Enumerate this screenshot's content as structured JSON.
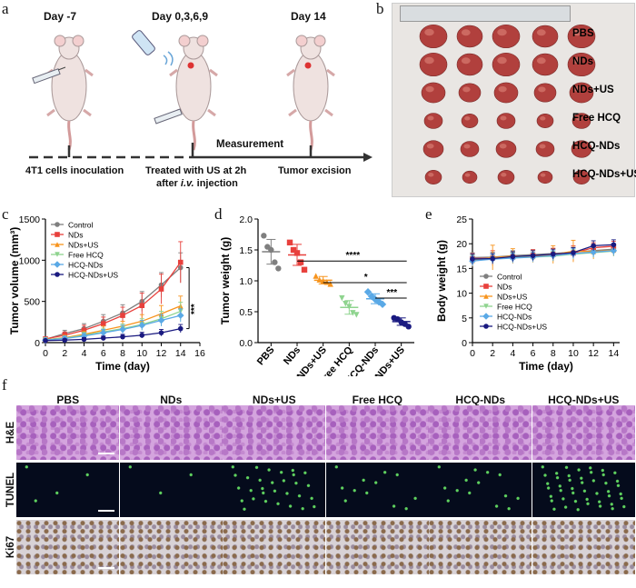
{
  "panel_letters": {
    "a": "a",
    "b": "b",
    "c": "c",
    "d": "d",
    "e": "e",
    "f": "f"
  },
  "panel_a": {
    "day_labels": [
      "Day -7",
      "Day 0,3,6,9",
      "Day 14"
    ],
    "measurement": "Measurement",
    "step1": "4T1 cells inoculation",
    "step2_line1": "Treated with US at 2h",
    "step2_line2_pre": "after ",
    "step2_line2_italic": "i.v.",
    "step2_line2_post": " injection",
    "step3": "Tumor excision"
  },
  "panel_b": {
    "row_labels": [
      "PBS",
      "NDs",
      "NDs+US",
      "Free HCQ",
      "HCQ-NDs",
      "HCQ-NDs+US"
    ]
  },
  "panel_f": {
    "column_labels": [
      "PBS",
      "NDs",
      "NDs+US",
      "Free HCQ",
      "HCQ-NDs",
      "HCQ-NDs+US"
    ],
    "row_labels": [
      "H&E",
      "TUNEL",
      "Ki67"
    ]
  },
  "chart_data": [
    {
      "id": "c",
      "type": "line",
      "ylabel": "Tumor volume (mm³)",
      "xlabel": "Time (day)",
      "x": [
        0,
        2,
        4,
        6,
        8,
        10,
        12,
        14
      ],
      "xticks": [
        "0",
        "2",
        "4",
        "6",
        "8",
        "10",
        "12",
        "14",
        "16"
      ],
      "yticks": [
        "0",
        "500",
        "1000",
        "1500"
      ],
      "xlim": [
        0,
        16
      ],
      "ylim": [
        0,
        1500
      ],
      "significance": "***",
      "series": [
        {
          "name": "Control",
          "color": "#7f7f7f",
          "marker": "circle",
          "values": [
            40,
            110,
            170,
            260,
            360,
            500,
            700,
            910
          ],
          "errors": [
            20,
            40,
            60,
            80,
            100,
            120,
            150,
            180
          ]
        },
        {
          "name": "NDs",
          "color": "#e8403c",
          "marker": "square",
          "values": [
            45,
            90,
            150,
            230,
            330,
            450,
            650,
            975
          ],
          "errors": [
            20,
            40,
            60,
            80,
            100,
            150,
            180,
            250
          ]
        },
        {
          "name": "NDs+US",
          "color": "#f7941d",
          "marker": "triangle",
          "values": [
            35,
            60,
            100,
            150,
            200,
            260,
            350,
            445
          ],
          "errors": [
            15,
            30,
            40,
            50,
            60,
            80,
            100,
            120
          ]
        },
        {
          "name": "Free HCQ",
          "color": "#8fd48f",
          "marker": "triangle-down",
          "values": [
            35,
            55,
            90,
            130,
            170,
            220,
            290,
            380
          ],
          "errors": [
            15,
            25,
            35,
            45,
            55,
            70,
            90,
            110
          ]
        },
        {
          "name": "HCQ-NDs",
          "color": "#5aa9e6",
          "marker": "diamond",
          "values": [
            30,
            50,
            80,
            120,
            160,
            210,
            270,
            330
          ],
          "errors": [
            15,
            25,
            30,
            40,
            50,
            60,
            70,
            80
          ]
        },
        {
          "name": "HCQ-NDs+US",
          "color": "#1a1a80",
          "marker": "circle",
          "values": [
            25,
            30,
            40,
            55,
            70,
            90,
            120,
            170
          ],
          "errors": [
            10,
            15,
            20,
            25,
            30,
            35,
            40,
            50
          ]
        }
      ]
    },
    {
      "id": "d",
      "type": "scatter",
      "ylabel": "Tumor weight (g)",
      "categories": [
        "PBS",
        "NDs",
        "NDs+US",
        "Free HCQ",
        "HCQ-NDs",
        "HCQ-NDs+US"
      ],
      "yticks": [
        "0.0",
        "0.5",
        "1.0",
        "1.5",
        "2.0"
      ],
      "ylim": [
        0,
        2.0
      ],
      "groups": [
        {
          "name": "PBS",
          "color": "#7f7f7f",
          "marker": "circle",
          "points": [
            1.73,
            1.55,
            1.5,
            1.3,
            1.2
          ],
          "mean": 1.47,
          "sd": 0.2
        },
        {
          "name": "NDs",
          "color": "#e8403c",
          "marker": "square",
          "points": [
            1.62,
            1.5,
            1.45,
            1.3,
            1.18
          ],
          "mean": 1.42,
          "sd": 0.17
        },
        {
          "name": "NDs+US",
          "color": "#f7941d",
          "marker": "triangle",
          "points": [
            1.08,
            1.02,
            1.0,
            0.98,
            0.95
          ],
          "mean": 1.01,
          "sd": 0.06
        },
        {
          "name": "Free HCQ",
          "color": "#8fd48f",
          "marker": "triangle-down",
          "points": [
            0.72,
            0.63,
            0.58,
            0.48,
            0.45
          ],
          "mean": 0.57,
          "sd": 0.11
        },
        {
          "name": "HCQ-NDs",
          "color": "#5aa9e6",
          "marker": "diamond",
          "points": [
            0.82,
            0.75,
            0.7,
            0.66,
            0.62
          ],
          "mean": 0.71,
          "sd": 0.08
        },
        {
          "name": "HCQ-NDs+US",
          "color": "#1a1a80",
          "marker": "circle",
          "points": [
            0.4,
            0.38,
            0.33,
            0.3,
            0.26
          ],
          "mean": 0.34,
          "sd": 0.06
        }
      ],
      "significance": [
        {
          "label": "****",
          "from": "NDs",
          "to": "HCQ-NDs+US",
          "y": 1.32
        },
        {
          "label": "*",
          "from": "NDs+US",
          "to": "HCQ-NDs+US",
          "y": 0.97
        },
        {
          "label": "***",
          "from": "HCQ-NDs",
          "to": "HCQ-NDs+US",
          "y": 0.72
        }
      ]
    },
    {
      "id": "e",
      "type": "line",
      "ylabel": "Body weight (g)",
      "xlabel": "Time (day)",
      "x": [
        0,
        2,
        4,
        6,
        8,
        10,
        12,
        14
      ],
      "xticks": [
        "0",
        "2",
        "4",
        "6",
        "8",
        "10",
        "12",
        "14"
      ],
      "yticks": [
        "0",
        "5",
        "10",
        "15",
        "20",
        "25"
      ],
      "xlim": [
        0,
        14.6
      ],
      "ylim": [
        0,
        25
      ],
      "series": [
        {
          "name": "Control",
          "color": "#7f7f7f",
          "marker": "circle",
          "values": [
            17.2,
            17.3,
            17.6,
            17.8,
            18.0,
            18.3,
            18.6,
            18.9
          ],
          "errors": [
            1,
            1,
            1,
            1,
            1,
            1,
            1,
            1
          ]
        },
        {
          "name": "NDs",
          "color": "#e8403c",
          "marker": "square",
          "values": [
            17.0,
            17.1,
            17.3,
            17.6,
            17.8,
            18.1,
            19.2,
            19.5
          ],
          "errors": [
            1,
            1.5,
            1,
            1.2,
            1.3,
            1.5,
            1,
            1
          ]
        },
        {
          "name": "NDs+US",
          "color": "#f7941d",
          "marker": "triangle",
          "values": [
            16.6,
            17.2,
            17.5,
            17.4,
            17.8,
            18.5,
            18.4,
            18.7
          ],
          "errors": [
            1.2,
            2.5,
            1.5,
            1.2,
            1.8,
            2.2,
            1.5,
            1.2
          ]
        },
        {
          "name": "Free HCQ",
          "color": "#8fd48f",
          "marker": "triangle-down",
          "values": [
            16.8,
            17.0,
            17.2,
            17.3,
            17.5,
            17.9,
            18.2,
            18.5
          ],
          "errors": [
            1,
            1,
            1,
            1,
            1,
            1,
            1,
            1
          ]
        },
        {
          "name": "HCQ-NDs",
          "color": "#5aa9e6",
          "marker": "diamond",
          "values": [
            16.5,
            16.9,
            17.1,
            17.3,
            17.6,
            18.0,
            18.3,
            18.6
          ],
          "errors": [
            1,
            1,
            1,
            1,
            1,
            1,
            1,
            1
          ]
        },
        {
          "name": "HCQ-NDs+US",
          "color": "#1a1a80",
          "marker": "circle",
          "values": [
            16.9,
            17.0,
            17.4,
            17.6,
            17.9,
            18.2,
            19.6,
            19.8
          ],
          "errors": [
            1,
            1,
            1,
            1,
            1,
            1,
            1,
            1
          ]
        }
      ]
    }
  ]
}
